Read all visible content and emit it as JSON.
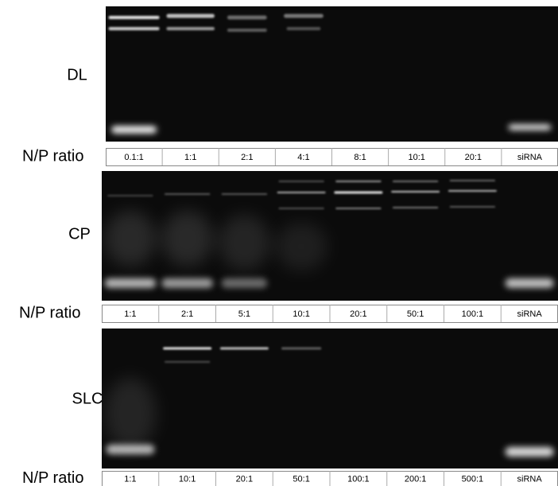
{
  "panels": [
    {
      "label": "DL",
      "row_label": "N/P ratio",
      "lanes": [
        "0.1:1",
        "1:1",
        "2:1",
        "4:1",
        "8:1",
        "10:1",
        "20:1",
        "siRNA"
      ]
    },
    {
      "label": "CP",
      "row_label": "N/P ratio",
      "lanes": [
        "1:1",
        "2:1",
        "5:1",
        "10:1",
        "20:1",
        "50:1",
        "100:1",
        "siRNA"
      ]
    },
    {
      "label": "SLC",
      "row_label": "N/P ratio",
      "lanes": [
        "1:1",
        "10:1",
        "20:1",
        "50:1",
        "100:1",
        "200:1",
        "500:1",
        "siRNA"
      ]
    }
  ]
}
